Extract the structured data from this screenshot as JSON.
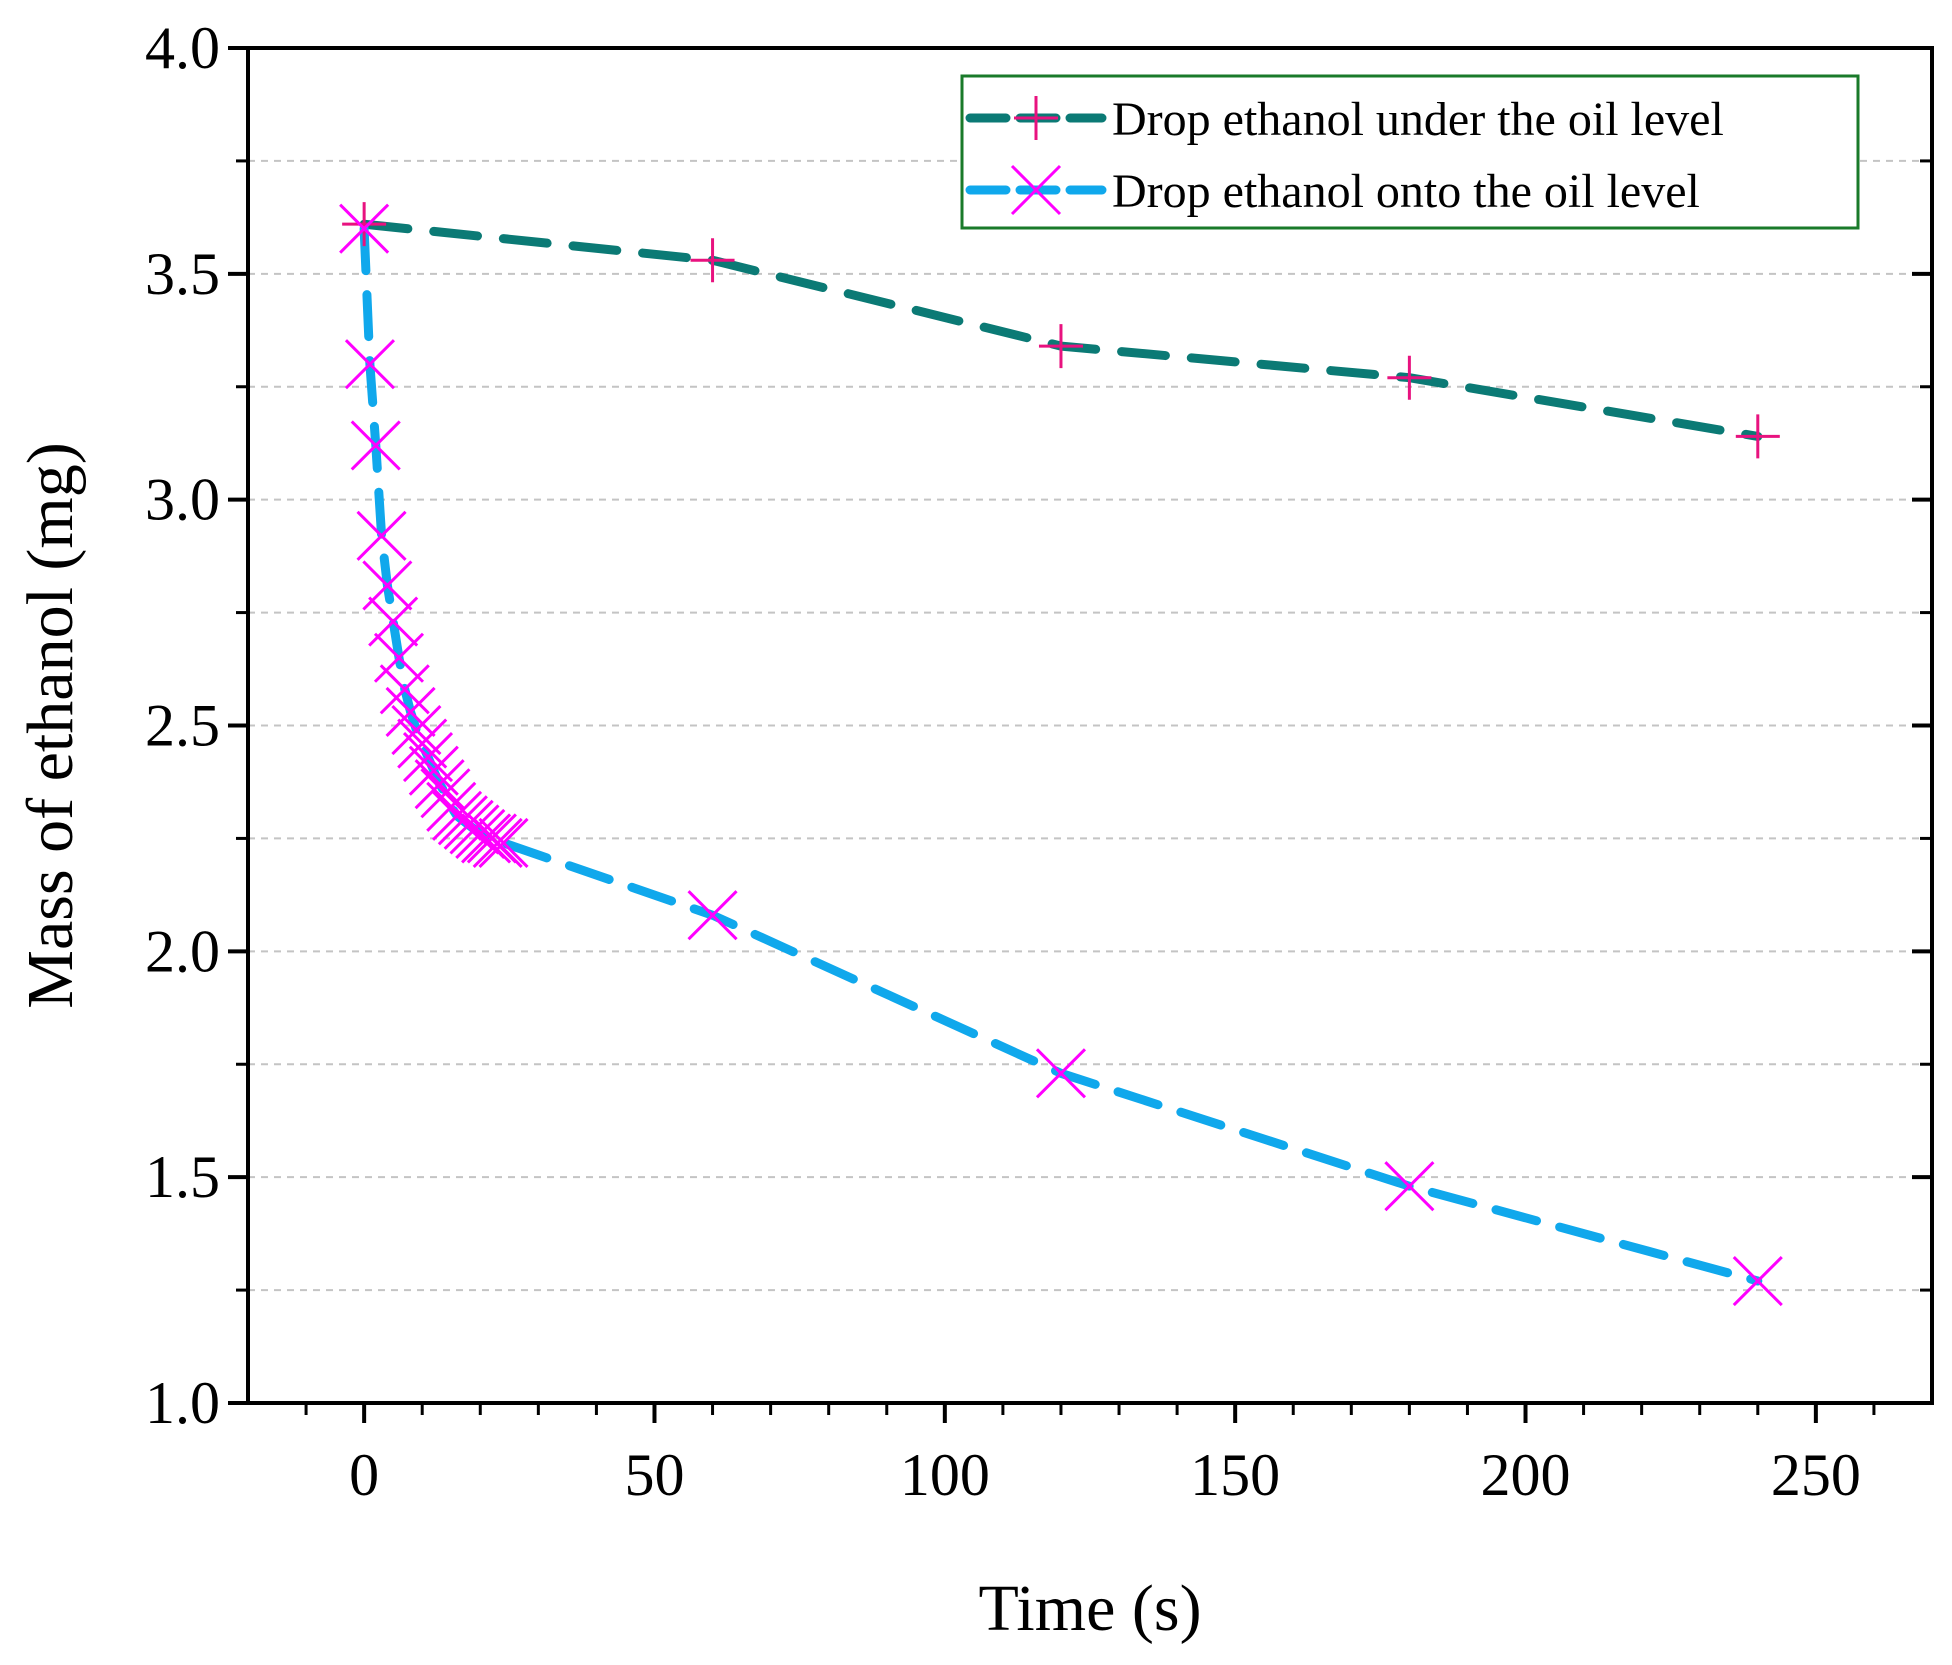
{
  "chart_data": {
    "type": "line",
    "title": "",
    "xlabel": "Time (s)",
    "ylabel": "Mass of ethanol (mg)",
    "xlim": [
      -20,
      270
    ],
    "ylim": [
      1.0,
      4.0
    ],
    "xticks": [
      0,
      50,
      100,
      150,
      200,
      250
    ],
    "xtick_labels": [
      "0",
      "50",
      "100",
      "150",
      "200",
      "250"
    ],
    "yticks": [
      1.0,
      1.5,
      2.0,
      2.5,
      3.0,
      3.5,
      4.0
    ],
    "ytick_labels": [
      "1.0",
      "1.5",
      "2.0",
      "2.5",
      "3.0",
      "3.5",
      "4.0"
    ],
    "ygrid": [
      1.25,
      1.5,
      1.75,
      2.0,
      2.25,
      2.5,
      2.75,
      3.0,
      3.25,
      3.5,
      3.75
    ],
    "grid": "horizontal dashed",
    "legend_position": "top-right",
    "series": [
      {
        "name": "Drop ethanol under the oil level",
        "line_color": "#0b7a75",
        "marker_color": "#e8127f",
        "marker": "plus",
        "x": [
          0,
          60,
          120,
          180,
          240
        ],
        "y": [
          3.61,
          3.53,
          3.34,
          3.27,
          3.14
        ]
      },
      {
        "name": "Drop ethanol onto the oil level",
        "line_color": "#10a8ec",
        "marker_color": "#ff00ff",
        "marker": "x",
        "x": [
          0,
          1,
          2,
          3,
          4,
          5,
          6,
          7,
          8,
          9,
          10,
          11,
          12,
          13,
          14,
          15,
          16,
          17,
          18,
          19,
          20,
          21,
          22,
          23,
          24,
          60,
          120,
          180,
          240
        ],
        "y": [
          3.6,
          3.3,
          3.12,
          2.92,
          2.81,
          2.73,
          2.65,
          2.58,
          2.53,
          2.49,
          2.46,
          2.43,
          2.4,
          2.37,
          2.35,
          2.32,
          2.3,
          2.29,
          2.28,
          2.27,
          2.26,
          2.25,
          2.25,
          2.24,
          2.24,
          2.08,
          1.73,
          1.48,
          1.27
        ]
      }
    ]
  }
}
